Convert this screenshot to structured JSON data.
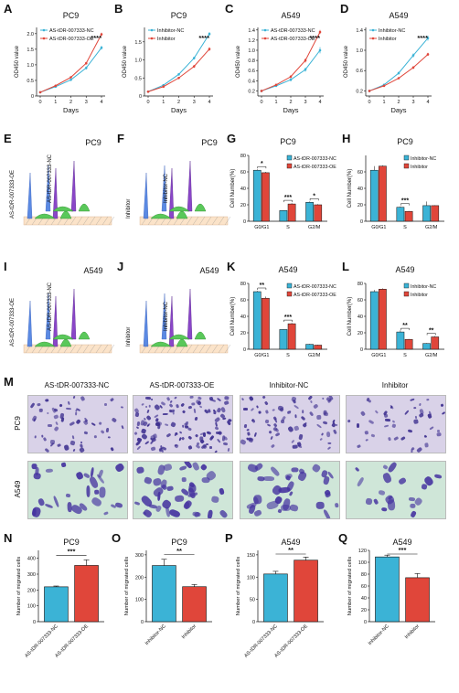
{
  "colors": {
    "nc": "#3bb3d6",
    "oe": "#e0463a"
  },
  "line_panels": [
    {
      "letter": "A",
      "title": "PC9",
      "ylabel": "OD450 value",
      "xlabel": "Days",
      "ylim": [
        0,
        2.2
      ],
      "yticks": [
        "0",
        "0.5",
        "1.0",
        "1.5",
        "2.0"
      ],
      "ytickvals": [
        0,
        0.5,
        1.0,
        1.5,
        2.0
      ],
      "xticks": [
        "0",
        "1",
        "2",
        "3",
        "4"
      ],
      "legend": [
        "AS-tDR-007333-NC",
        "AS-tDR-007333-OE"
      ],
      "sig": "****"
    },
    {
      "letter": "B",
      "title": "PC9",
      "ylabel": "OD450 value",
      "xlabel": "Days",
      "ylim": [
        0,
        1.9
      ],
      "yticks": [
        "0",
        "0.5",
        "1.0",
        "1.5"
      ],
      "ytickvals": [
        0,
        0.5,
        1.0,
        1.5
      ],
      "xticks": [
        "0",
        "1",
        "2",
        "3",
        "4"
      ],
      "legend": [
        "Inhibitor-NC",
        "Inhibitor"
      ],
      "sig": "****"
    },
    {
      "letter": "C",
      "title": "A549",
      "ylabel": "OD450 value",
      "xlabel": "Days",
      "ylim": [
        0.1,
        1.45
      ],
      "yticks": [
        "0.2",
        "0.4",
        "0.6",
        "0.8",
        "1.0",
        "1.2",
        "1.4"
      ],
      "ytickvals": [
        0.2,
        0.4,
        0.6,
        0.8,
        1.0,
        1.2,
        1.4
      ],
      "xticks": [
        "0",
        "1",
        "2",
        "3",
        "4"
      ],
      "legend": [
        "AS-tDR-007333-NC",
        "AS-tDR-007333-OE"
      ],
      "sig": "****"
    },
    {
      "letter": "D",
      "title": "A549",
      "ylabel": "OD450 value",
      "xlabel": "Days",
      "ylim": [
        0.1,
        1.45
      ],
      "yticks": [
        "0.2",
        "0.6",
        "1.0",
        "1.4"
      ],
      "ytickvals": [
        0.2,
        0.6,
        1.0,
        1.4
      ],
      "xticks": [
        "0",
        "1",
        "2",
        "3",
        "4"
      ],
      "legend": [
        "Inhibitor-NC",
        "Inhibitor"
      ],
      "sig": "****"
    }
  ],
  "flow_panels": [
    {
      "letter": "E",
      "title": "PC9",
      "labels": [
        "AS-tDR-007333-OE",
        "AS-tDR-007333-NC"
      ]
    },
    {
      "letter": "F",
      "title": "PC9",
      "labels": [
        "Inhibitor",
        "Inhibitor-NC"
      ]
    },
    {
      "letter": "I",
      "title": "A549",
      "labels": [
        "AS-tDR-007333-OE",
        "AS-tDR-007333-NC"
      ]
    },
    {
      "letter": "J",
      "title": "A549",
      "labels": [
        "Inhibitor",
        "Inhibitor-NC"
      ]
    }
  ],
  "cycle_panels": [
    {
      "letter": "G",
      "title": "PC9",
      "ylabel": "Cell Number(%)",
      "ymax": 80,
      "yticks": [
        "0",
        "20",
        "40",
        "60",
        "80"
      ],
      "ytickvals": [
        0,
        20,
        40,
        60,
        80
      ],
      "categories": [
        "G0/G1",
        "S",
        "G2/M"
      ],
      "legend": [
        "AS-tDR-007333-NC",
        "AS-tDR-007333-OE"
      ],
      "sig": [
        "*",
        "***",
        "*"
      ]
    },
    {
      "letter": "H",
      "title": "PC9",
      "ylabel": "Cell Number(%)",
      "ymax": 80,
      "yticks": [
        "0",
        "20",
        "40",
        "60"
      ],
      "ytickvals": [
        0,
        20,
        40,
        60
      ],
      "categories": [
        "G0/G1",
        "S",
        "G2/M"
      ],
      "legend": [
        "Inhibitor-NC",
        "Inhibitor"
      ],
      "sig": [
        "",
        "***",
        ""
      ]
    },
    {
      "letter": "K",
      "title": "A549",
      "ylabel": "Cell Number(%)",
      "ymax": 80,
      "yticks": [
        "0",
        "20",
        "40",
        "60",
        "80"
      ],
      "ytickvals": [
        0,
        20,
        40,
        60,
        80
      ],
      "categories": [
        "G0/G1",
        "S",
        "G2/M"
      ],
      "legend": [
        "AS-tDR-007333-NC",
        "AS-tDR-007333-OE"
      ],
      "sig": [
        "**",
        "***",
        ""
      ]
    },
    {
      "letter": "L",
      "title": "A549",
      "ylabel": "Cell Number(%)",
      "ymax": 80,
      "yticks": [
        "0",
        "20",
        "40",
        "60",
        "80"
      ],
      "ytickvals": [
        0,
        20,
        40,
        60,
        80
      ],
      "categories": [
        "G0/G1",
        "S",
        "G2/M"
      ],
      "legend": [
        "Inhibitor-NC",
        "Inhibitor"
      ],
      "sig": [
        "",
        "**",
        "**"
      ]
    }
  ],
  "panel_m": {
    "letter": "M",
    "column_titles": [
      "AS-tDR-007333-NC",
      "AS-tDR-007333-OE",
      "Inhibitor-NC",
      "Inhibitor"
    ],
    "row_labels": [
      "PC9",
      "A549"
    ]
  },
  "migration_panels": [
    {
      "letter": "N",
      "title": "PC9",
      "ylabel": "Number of migrated cells",
      "ymax": 450,
      "yticks": [
        "0",
        "100",
        "200",
        "300",
        "400"
      ],
      "ytickvals": [
        0,
        100,
        200,
        300,
        400
      ],
      "categories": [
        "AS-tDR-007333-NC",
        "AS-tDR-007333-OE"
      ],
      "sig": "***"
    },
    {
      "letter": "O",
      "title": "PC9",
      "ylabel": "Number of migrated cells",
      "ymax": 320,
      "yticks": [
        "0",
        "100",
        "200",
        "300"
      ],
      "ytickvals": [
        0,
        100,
        200,
        300
      ],
      "categories": [
        "Inhibitor-NC",
        "Inhibitor"
      ],
      "sig": "**"
    },
    {
      "letter": "P",
      "title": "A549",
      "ylabel": "Number of migrated cells",
      "ymax": 160,
      "yticks": [
        "0",
        "50",
        "100",
        "150"
      ],
      "ytickvals": [
        0,
        50,
        100,
        150
      ],
      "categories": [
        "AS-tDR-007333-NC",
        "AS-tDR-007333-OE"
      ],
      "sig": "**"
    },
    {
      "letter": "Q",
      "title": "A549",
      "ylabel": "Number of migrated cells",
      "ymax": 120,
      "yticks": [
        "0",
        "20",
        "40",
        "60",
        "80",
        "100",
        "120"
      ],
      "ytickvals": [
        0,
        20,
        40,
        60,
        80,
        100,
        120
      ],
      "categories": [
        "Inhibitor-NC",
        "Inhibitor"
      ],
      "sig": "***"
    }
  ],
  "chart_data": [
    {
      "type": "line",
      "panel": "A",
      "x": [
        0,
        1,
        2,
        3,
        4
      ],
      "series": [
        {
          "name": "AS-tDR-007333-NC",
          "values": [
            0.12,
            0.3,
            0.52,
            0.9,
            1.55
          ],
          "err": [
            0.01,
            0.02,
            0.03,
            0.05,
            0.06
          ]
        },
        {
          "name": "AS-tDR-007333-OE",
          "values": [
            0.12,
            0.33,
            0.6,
            1.05,
            1.98
          ],
          "err": [
            0.01,
            0.02,
            0.03,
            0.04,
            0.05
          ]
        }
      ]
    },
    {
      "type": "line",
      "panel": "B",
      "x": [
        0,
        1,
        2,
        3,
        4
      ],
      "series": [
        {
          "name": "Inhibitor-NC",
          "values": [
            0.12,
            0.3,
            0.6,
            1.05,
            1.72
          ],
          "err": [
            0.01,
            0.02,
            0.03,
            0.04,
            0.05
          ]
        },
        {
          "name": "Inhibitor",
          "values": [
            0.12,
            0.26,
            0.5,
            0.82,
            1.3
          ],
          "err": [
            0.01,
            0.02,
            0.03,
            0.04,
            0.05
          ]
        }
      ]
    },
    {
      "type": "line",
      "panel": "C",
      "x": [
        0,
        1,
        2,
        3,
        4
      ],
      "series": [
        {
          "name": "AS-tDR-007333-NC",
          "values": [
            0.2,
            0.3,
            0.42,
            0.62,
            1.0
          ],
          "err": [
            0.01,
            0.02,
            0.03,
            0.04,
            0.06
          ]
        },
        {
          "name": "AS-tDR-007333-OE",
          "values": [
            0.2,
            0.32,
            0.48,
            0.8,
            1.36
          ],
          "err": [
            0.01,
            0.02,
            0.03,
            0.04,
            0.04
          ]
        }
      ]
    },
    {
      "type": "line",
      "panel": "D",
      "x": [
        0,
        1,
        2,
        3,
        4
      ],
      "series": [
        {
          "name": "Inhibitor-NC",
          "values": [
            0.2,
            0.32,
            0.55,
            0.9,
            1.24
          ],
          "err": [
            0.01,
            0.02,
            0.03,
            0.04,
            0.05
          ]
        },
        {
          "name": "Inhibitor",
          "values": [
            0.2,
            0.3,
            0.45,
            0.66,
            0.92
          ],
          "err": [
            0.01,
            0.02,
            0.02,
            0.03,
            0.03
          ]
        }
      ]
    },
    {
      "type": "bar",
      "panel": "G",
      "categories": [
        "G0/G1",
        "S",
        "G2/M"
      ],
      "series": [
        {
          "name": "AS-tDR-007333-NC",
          "values": [
            62,
            13,
            23
          ],
          "err": [
            1,
            0.5,
            1
          ]
        },
        {
          "name": "AS-tDR-007333-OE",
          "values": [
            59,
            21,
            20
          ],
          "err": [
            1,
            1,
            0.8
          ]
        }
      ]
    },
    {
      "type": "bar",
      "panel": "H",
      "categories": [
        "G0/G1",
        "S",
        "G2/M"
      ],
      "series": [
        {
          "name": "Inhibitor-NC",
          "values": [
            62,
            17,
            19
          ],
          "err": [
            5,
            1,
            5
          ]
        },
        {
          "name": "Inhibitor",
          "values": [
            67,
            12,
            19
          ],
          "err": [
            1,
            0.5,
            0.5
          ]
        }
      ]
    },
    {
      "type": "bar",
      "panel": "K",
      "categories": [
        "G0/G1",
        "S",
        "G2/M"
      ],
      "series": [
        {
          "name": "AS-tDR-007333-NC",
          "values": [
            70,
            24,
            6
          ],
          "err": [
            1,
            0.5,
            0.5
          ]
        },
        {
          "name": "AS-tDR-007333-OE",
          "values": [
            62,
            31,
            5
          ],
          "err": [
            2,
            1,
            0.5
          ]
        }
      ]
    },
    {
      "type": "bar",
      "panel": "L",
      "categories": [
        "G0/G1",
        "S",
        "G2/M"
      ],
      "series": [
        {
          "name": "Inhibitor-NC",
          "values": [
            70,
            21,
            7
          ],
          "err": [
            2,
            2,
            0.5
          ]
        },
        {
          "name": "Inhibitor",
          "values": [
            73,
            12,
            15
          ],
          "err": [
            1,
            0.5,
            1
          ]
        }
      ]
    },
    {
      "type": "bar",
      "panel": "N",
      "categories": [
        "AS-tDR-007333-NC",
        "AS-tDR-007333-OE"
      ],
      "values": [
        220,
        355
      ],
      "err": [
        5,
        35
      ]
    },
    {
      "type": "bar",
      "panel": "O",
      "categories": [
        "Inhibitor-NC",
        "Inhibitor"
      ],
      "values": [
        252,
        157
      ],
      "err": [
        28,
        10
      ]
    },
    {
      "type": "bar",
      "panel": "P",
      "categories": [
        "AS-tDR-007333-NC",
        "AS-tDR-007333-OE"
      ],
      "values": [
        107,
        138
      ],
      "err": [
        6,
        7
      ]
    },
    {
      "type": "bar",
      "panel": "Q",
      "categories": [
        "Inhibitor-NC",
        "Inhibitor"
      ],
      "values": [
        109,
        74
      ],
      "err": [
        3,
        7
      ]
    }
  ]
}
